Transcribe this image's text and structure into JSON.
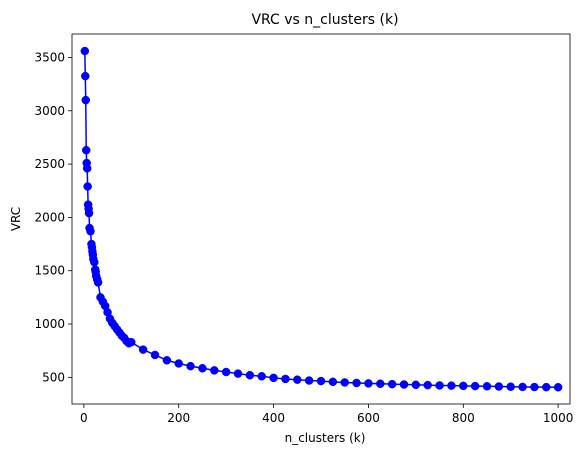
{
  "chart_data": {
    "type": "line",
    "title": "VRC vs n_clusters (k)",
    "xlabel": "n_clusters (k)",
    "ylabel": "VRC",
    "xlim": [
      -25,
      1025
    ],
    "ylim": [
      250,
      3720
    ],
    "xticks": [
      0,
      200,
      400,
      600,
      800,
      1000
    ],
    "yticks": [
      500,
      1000,
      1500,
      2000,
      2500,
      3000,
      3500
    ],
    "grid": false,
    "legend": "none",
    "color": "#0000ff",
    "marker": "circle",
    "series": [
      {
        "x": [
          2,
          3,
          4,
          5,
          6,
          7,
          8,
          9,
          10,
          11,
          12,
          14,
          16,
          17,
          18,
          19,
          20,
          22,
          24,
          25,
          26,
          28,
          30,
          35,
          40,
          45,
          50,
          55,
          60,
          65,
          70,
          75,
          80,
          85,
          90,
          95,
          100,
          125,
          150,
          175,
          200,
          225,
          250,
          275,
          300,
          325,
          350,
          375,
          400,
          425,
          450,
          475,
          500,
          525,
          550,
          575,
          600,
          625,
          650,
          675,
          700,
          725,
          750,
          775,
          800,
          825,
          850,
          875,
          900,
          925,
          950,
          975,
          1000
        ],
        "y": [
          3560,
          3325,
          3100,
          2630,
          2510,
          2460,
          2290,
          2120,
          2080,
          2040,
          1900,
          1870,
          1750,
          1720,
          1680,
          1650,
          1610,
          1580,
          1510,
          1490,
          1450,
          1420,
          1390,
          1250,
          1210,
          1170,
          1110,
          1050,
          1010,
          980,
          950,
          920,
          890,
          870,
          840,
          820,
          830,
          760,
          710,
          660,
          630,
          605,
          585,
          565,
          550,
          535,
          520,
          510,
          495,
          485,
          478,
          470,
          465,
          458,
          452,
          447,
          443,
          440,
          436,
          433,
          430,
          427,
          424,
          422,
          420,
          418,
          416,
          414,
          412,
          410,
          409,
          408,
          407
        ]
      }
    ]
  }
}
